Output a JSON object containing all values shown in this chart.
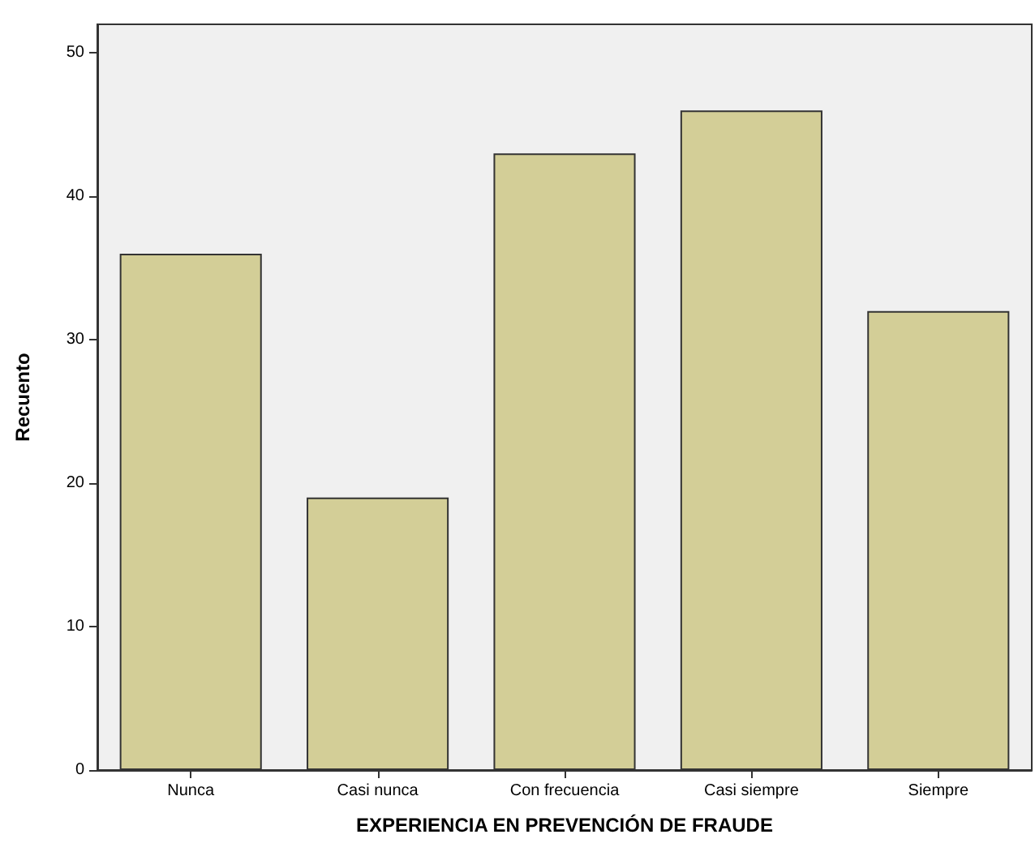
{
  "chart_data": {
    "type": "bar",
    "xlabel": "EXPERIENCIA EN PREVENCIÓN DE FRAUDE",
    "ylabel": "Recuento",
    "categories": [
      "Nunca",
      "Casi nunca",
      "Con frecuencia",
      "Casi siempre",
      "Siempre"
    ],
    "values": [
      36,
      19,
      43,
      46,
      32
    ],
    "color": "#d3ce97",
    "ylim": [
      0,
      52
    ],
    "yticks": [
      0,
      10,
      20,
      30,
      40,
      50
    ],
    "grid": false
  }
}
